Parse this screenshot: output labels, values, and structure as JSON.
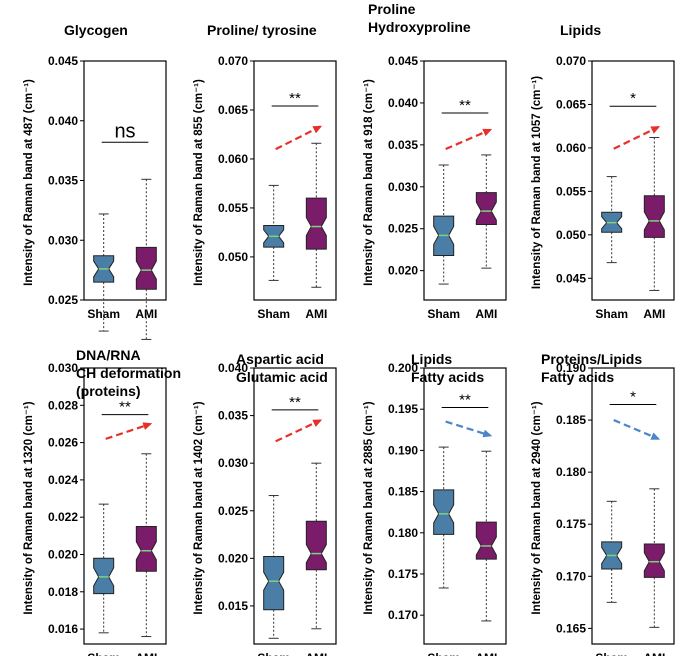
{
  "figure": {
    "colors": {
      "sham": "#4a7ea6",
      "ami": "#7b1c6b",
      "up_arrow": "#e8302a",
      "down_arrow": "#4a86c8",
      "median": "#7fd17f"
    }
  },
  "chart_data": [
    {
      "type": "boxplot",
      "title_lines": [
        "Glycogen"
      ],
      "ylabel": "Intensity of Raman band at 487 (cm⁻¹)",
      "ylim": [
        0.025,
        0.045
      ],
      "yticks": [
        "0.025",
        "0.030",
        "0.035",
        "0.040",
        "0.045"
      ],
      "categories": [
        "Sham",
        "AMI"
      ],
      "boxes": [
        {
          "name": "Sham",
          "whislo": 0.0224,
          "q1": 0.0265,
          "med": 0.0276,
          "q3": 0.0287,
          "whishi": 0.0322
        },
        {
          "name": "AMI",
          "whislo": 0.0217,
          "q1": 0.0259,
          "med": 0.0275,
          "q3": 0.0294,
          "whishi": 0.0351
        }
      ],
      "significance": "ns",
      "sig_y": 0.0382,
      "trend": "none"
    },
    {
      "type": "boxplot",
      "title_lines": [
        "Proline/ tyrosine"
      ],
      "ylabel": "Intensity of Raman band at 855 (cm⁻¹)",
      "ylim": [
        0.0456,
        0.07
      ],
      "yticks": [
        "0.050",
        "0.055",
        "0.060",
        "0.065",
        "0.070"
      ],
      "categories": [
        "Sham",
        "AMI"
      ],
      "boxes": [
        {
          "name": "Sham",
          "whislo": 0.0476,
          "q1": 0.051,
          "med": 0.0521,
          "q3": 0.0532,
          "whishi": 0.0573
        },
        {
          "name": "AMI",
          "whislo": 0.0469,
          "q1": 0.0508,
          "med": 0.0531,
          "q3": 0.056,
          "whishi": 0.0616
        }
      ],
      "significance": "**",
      "sig_y": 0.0654,
      "trend": "up",
      "trend_from": 0.061,
      "trend_to": 0.0633
    },
    {
      "type": "boxplot",
      "title_lines": [
        "Proline",
        "Hydroxyproline"
      ],
      "ylabel": "Intensity of Raman band at 918 (cm⁻¹)",
      "ylim": [
        0.0165,
        0.045
      ],
      "yticks": [
        "0.020",
        "0.025",
        "0.030",
        "0.035",
        "0.040",
        "0.045"
      ],
      "categories": [
        "Sham",
        "AMI"
      ],
      "boxes": [
        {
          "name": "Sham",
          "whislo": 0.0184,
          "q1": 0.0218,
          "med": 0.0242,
          "q3": 0.0265,
          "whishi": 0.0326
        },
        {
          "name": "AMI",
          "whislo": 0.0203,
          "q1": 0.0255,
          "med": 0.0271,
          "q3": 0.0293,
          "whishi": 0.0338
        }
      ],
      "significance": "**",
      "sig_y": 0.0388,
      "trend": "up",
      "trend_from": 0.0345,
      "trend_to": 0.0368
    },
    {
      "type": "boxplot",
      "title_lines": [
        "Lipids"
      ],
      "ylabel": "Intensity of Raman band at 1057 (cm⁻¹)",
      "ylim": [
        0.0425,
        0.07
      ],
      "yticks": [
        "0.045",
        "0.050",
        "0.055",
        "0.060",
        "0.065",
        "0.070"
      ],
      "categories": [
        "Sham",
        "AMI"
      ],
      "boxes": [
        {
          "name": "Sham",
          "whislo": 0.0468,
          "q1": 0.0503,
          "med": 0.0514,
          "q3": 0.0526,
          "whishi": 0.0567
        },
        {
          "name": "AMI",
          "whislo": 0.0436,
          "q1": 0.0497,
          "med": 0.0516,
          "q3": 0.0545,
          "whishi": 0.0612
        }
      ],
      "significance": "*",
      "sig_y": 0.0648,
      "trend": "up",
      "trend_from": 0.0599,
      "trend_to": 0.0624
    },
    {
      "type": "boxplot",
      "title_lines": [
        "DNA/RNA",
        "CH deformation",
        "(proteins)"
      ],
      "ylabel": "Intensity of Raman band at 1320 (cm⁻¹)",
      "ylim": [
        0.0152,
        0.03
      ],
      "yticks": [
        "0.016",
        "0.018",
        "0.020",
        "0.022",
        "0.024",
        "0.026",
        "0.028",
        "0.030"
      ],
      "categories": [
        "Sham",
        "AMI"
      ],
      "boxes": [
        {
          "name": "Sham",
          "whislo": 0.0158,
          "q1": 0.0179,
          "med": 0.0188,
          "q3": 0.0198,
          "whishi": 0.0227
        },
        {
          "name": "AMI",
          "whislo": 0.0156,
          "q1": 0.0191,
          "med": 0.0202,
          "q3": 0.0215,
          "whishi": 0.0254
        }
      ],
      "significance": "**",
      "sig_y": 0.0275,
      "trend": "up",
      "trend_from": 0.0262,
      "trend_to": 0.027
    },
    {
      "type": "boxplot",
      "title_lines": [
        "Aspartic acid",
        "Glutamic acid"
      ],
      "ylabel": "Intensity of Raman band at 1402 (cm⁻¹)",
      "ylim": [
        0.011,
        0.04
      ],
      "yticks": [
        "0.015",
        "0.020",
        "0.025",
        "0.030",
        "0.035",
        "0.040"
      ],
      "categories": [
        "Sham",
        "AMI"
      ],
      "boxes": [
        {
          "name": "Sham",
          "whislo": 0.0116,
          "q1": 0.0146,
          "med": 0.0176,
          "q3": 0.0202,
          "whishi": 0.0266
        },
        {
          "name": "AMI",
          "whislo": 0.0126,
          "q1": 0.0188,
          "med": 0.0205,
          "q3": 0.0239,
          "whishi": 0.03
        }
      ],
      "significance": "**",
      "sig_y": 0.0356,
      "trend": "up",
      "trend_from": 0.0323,
      "trend_to": 0.0345
    },
    {
      "type": "boxplot",
      "title_lines": [
        "Lipids",
        "Fatty acids"
      ],
      "ylabel": "Intensity of Raman band at 2885 (cm⁻¹)",
      "ylim": [
        0.1665,
        0.2
      ],
      "yticks": [
        "0.170",
        "0.175",
        "0.180",
        "0.185",
        "0.190",
        "0.195",
        "0.200"
      ],
      "categories": [
        "Sham",
        "AMI"
      ],
      "boxes": [
        {
          "name": "Sham",
          "whislo": 0.1733,
          "q1": 0.1798,
          "med": 0.1823,
          "q3": 0.1852,
          "whishi": 0.1904
        },
        {
          "name": "AMI",
          "whislo": 0.1693,
          "q1": 0.1768,
          "med": 0.1784,
          "q3": 0.1813,
          "whishi": 0.1899
        }
      ],
      "significance": "**",
      "sig_y": 0.1952,
      "trend": "down",
      "trend_from": 0.1935,
      "trend_to": 0.1918
    },
    {
      "type": "boxplot",
      "title_lines": [
        "Proteins/Lipids",
        "Fatty acids"
      ],
      "ylabel": "Intensity of Raman band at 2940 (cm⁻¹)",
      "ylim": [
        0.1635,
        0.19
      ],
      "yticks": [
        "0.165",
        "0.170",
        "0.175",
        "0.180",
        "0.185",
        "0.190"
      ],
      "categories": [
        "Sham",
        "AMI"
      ],
      "boxes": [
        {
          "name": "Sham",
          "whislo": 0.1675,
          "q1": 0.1707,
          "med": 0.172,
          "q3": 0.1733,
          "whishi": 0.1772
        },
        {
          "name": "AMI",
          "whislo": 0.1651,
          "q1": 0.1699,
          "med": 0.1714,
          "q3": 0.1731,
          "whishi": 0.1784
        }
      ],
      "significance": "*",
      "sig_y": 0.1865,
      "trend": "down",
      "trend_from": 0.185,
      "trend_to": 0.1832
    }
  ]
}
